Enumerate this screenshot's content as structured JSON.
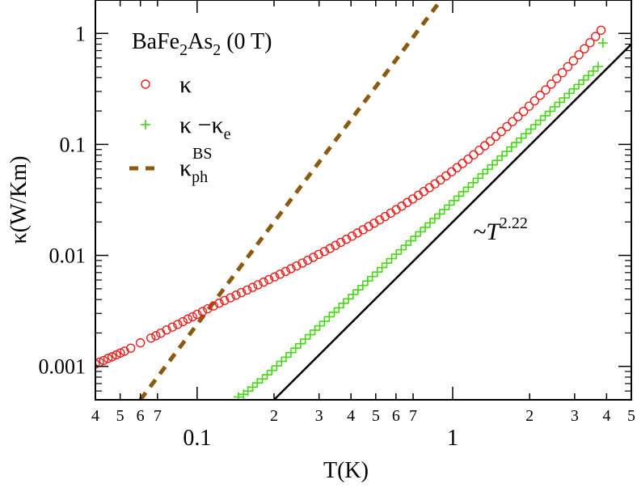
{
  "chart_data": {
    "type": "scatter",
    "title": "",
    "annotation": {
      "prefix": "~T",
      "exponent": "2.22"
    },
    "compound": {
      "part1": "BaFe",
      "sub1": "2",
      "part2": "As",
      "sub2": "2",
      "suffix": " (0 T)"
    },
    "xlabel": "T(K)",
    "ylabel": "κ(W/Km)",
    "xscale": "log",
    "yscale": "log",
    "xlim": [
      0.04,
      5
    ],
    "ylim": [
      0.0005,
      2
    ],
    "x_major_ticks": [
      {
        "value": 0.1,
        "label": "0.1"
      },
      {
        "value": 1,
        "label": "1"
      }
    ],
    "x_minor_ticks": [
      {
        "value": 0.04,
        "label": "4"
      },
      {
        "value": 0.05,
        "label": "5"
      },
      {
        "value": 0.06,
        "label": "6"
      },
      {
        "value": 0.07,
        "label": "7"
      },
      {
        "value": 0.2,
        "label": "2"
      },
      {
        "value": 0.3,
        "label": "3"
      },
      {
        "value": 0.4,
        "label": "4"
      },
      {
        "value": 0.5,
        "label": "5"
      },
      {
        "value": 0.6,
        "label": "6"
      },
      {
        "value": 0.7,
        "label": "7"
      },
      {
        "value": 2,
        "label": "2"
      },
      {
        "value": 3,
        "label": "3"
      },
      {
        "value": 4,
        "label": "4"
      },
      {
        "value": 5,
        "label": "5"
      }
    ],
    "y_major_ticks": [
      {
        "value": 0.001,
        "label": "0.001"
      },
      {
        "value": 0.01,
        "label": "0.01"
      },
      {
        "value": 0.1,
        "label": "0.1"
      },
      {
        "value": 1,
        "label": "1"
      }
    ],
    "legend_position": "top-left",
    "legend": [
      {
        "label": "κ",
        "sub": "",
        "sup": "",
        "marker": "circle",
        "color": "#e8211f"
      },
      {
        "label": "κ −κ",
        "sub": "e",
        "sup": "",
        "marker": "plus",
        "color": "#44d610"
      },
      {
        "label": "κ",
        "sub": "ph",
        "sup": "BS",
        "marker": "dashed-line",
        "color": "#8b5a0f"
      }
    ],
    "series": [
      {
        "name": "κ",
        "marker": "circle",
        "color": "#e8211f",
        "x": [
          0.04,
          0.0415,
          0.0431,
          0.0448,
          0.0465,
          0.0483,
          0.0501,
          0.052,
          0.055,
          0.06,
          0.066,
          0.069,
          0.072,
          0.076,
          0.08,
          0.084,
          0.088,
          0.092,
          0.096,
          0.1,
          0.105,
          0.11,
          0.116,
          0.122,
          0.128,
          0.135,
          0.142,
          0.149,
          0.157,
          0.165,
          0.173,
          0.182,
          0.191,
          0.201,
          0.211,
          0.222,
          0.233,
          0.245,
          0.258,
          0.271,
          0.285,
          0.299,
          0.315,
          0.331,
          0.348,
          0.365,
          0.384,
          0.404,
          0.424,
          0.446,
          0.469,
          0.493,
          0.518,
          0.544,
          0.572,
          0.601,
          0.632,
          0.664,
          0.698,
          0.734,
          0.771,
          0.811,
          0.852,
          0.896,
          0.942,
          0.99,
          1.04,
          1.093,
          1.149,
          1.208,
          1.27,
          1.335,
          1.403,
          1.475,
          1.55,
          1.63,
          1.713,
          1.801,
          1.893,
          1.99,
          2.092,
          2.199,
          2.311,
          2.43,
          2.554,
          2.685,
          2.822,
          2.967,
          3.118,
          3.278,
          3.446,
          3.622,
          3.807
        ],
        "y": [
          0.00105,
          0.00109,
          0.00113,
          0.00118,
          0.00122,
          0.00127,
          0.00132,
          0.00137,
          0.00146,
          0.00163,
          0.0018,
          0.00189,
          0.00199,
          0.00213,
          0.00226,
          0.00239,
          0.00253,
          0.00267,
          0.0028,
          0.00294,
          0.00312,
          0.0033,
          0.0035,
          0.00371,
          0.00392,
          0.00415,
          0.00438,
          0.00462,
          0.00488,
          0.00515,
          0.00543,
          0.00574,
          0.00606,
          0.0064,
          0.00677,
          0.00717,
          0.00759,
          0.00804,
          0.00853,
          0.00905,
          0.00961,
          0.01021,
          0.01086,
          0.01155,
          0.01231,
          0.01311,
          0.01398,
          0.01491,
          0.01592,
          0.01703,
          0.01822,
          0.01948,
          0.02088,
          0.0224,
          0.02403,
          0.02585,
          0.0278,
          0.02994,
          0.03227,
          0.03483,
          0.03765,
          0.04074,
          0.04413,
          0.04788,
          0.05207,
          0.05661,
          0.0617,
          0.06735,
          0.07361,
          0.0806,
          0.08847,
          0.0972,
          0.1069,
          0.1181,
          0.1304,
          0.1447,
          0.1602,
          0.1779,
          0.1981,
          0.221,
          0.247,
          0.277,
          0.31,
          0.349,
          0.393,
          0.443,
          0.501,
          0.567,
          0.642,
          0.728,
          0.826,
          0.939,
          1.069
        ]
      },
      {
        "name": "κ −κe",
        "marker": "plus",
        "color": "#44d610",
        "x": [
          0.145,
          0.152,
          0.158,
          0.165,
          0.172,
          0.18,
          0.188,
          0.196,
          0.205,
          0.214,
          0.223,
          0.233,
          0.243,
          0.254,
          0.265,
          0.277,
          0.289,
          0.302,
          0.315,
          0.329,
          0.344,
          0.359,
          0.374,
          0.391,
          0.408,
          0.426,
          0.445,
          0.465,
          0.485,
          0.507,
          0.529,
          0.552,
          0.577,
          0.602,
          0.629,
          0.657,
          0.686,
          0.716,
          0.748,
          0.781,
          0.815,
          0.851,
          0.889,
          0.928,
          0.969,
          1.012,
          1.057,
          1.103,
          1.152,
          1.203,
          1.256,
          1.312,
          1.37,
          1.43,
          1.494,
          1.56,
          1.629,
          1.7,
          1.776,
          1.854,
          1.936,
          2.022,
          2.111,
          2.205,
          2.302,
          2.404,
          2.51,
          2.621,
          2.737,
          2.858,
          2.984,
          3.116,
          3.254,
          3.398,
          3.548,
          3.705,
          3.869
        ],
        "y": [
          0.00053,
          0.00056,
          0.0006,
          0.00065,
          0.00071,
          0.00077,
          0.00084,
          0.00092,
          0.00101,
          0.00111,
          0.00121,
          0.00133,
          0.00146,
          0.0016,
          0.00176,
          0.00193,
          0.00212,
          0.00232,
          0.00255,
          0.0028,
          0.00307,
          0.00337,
          0.0037,
          0.00406,
          0.00445,
          0.00489,
          0.00536,
          0.00588,
          0.00645,
          0.00708,
          0.00777,
          0.00852,
          0.00935,
          0.01025,
          0.01125,
          0.01234,
          0.01354,
          0.01486,
          0.0163,
          0.01788,
          0.01961,
          0.02152,
          0.02361,
          0.0259,
          0.02841,
          0.03117,
          0.0342,
          0.03752,
          0.04116,
          0.04515,
          0.04953,
          0.05434,
          0.05962,
          0.0654,
          0.07175,
          0.07871,
          0.08636,
          0.09474,
          0.1039,
          0.114,
          0.1251,
          0.1372,
          0.1506,
          0.1652,
          0.1812,
          0.1988,
          0.2181,
          0.2393,
          0.2625,
          0.288,
          0.3159,
          0.3466,
          0.3802,
          0.4171,
          0.4576,
          0.502,
          0.82
        ]
      },
      {
        "name": "κphBS",
        "marker": "dashed-line",
        "color": "#8b5a0f",
        "x": [
          0.06,
          0.9
        ],
        "y": [
          0.0005,
          2.0
        ]
      },
      {
        "name": "~T^2.22",
        "marker": "solid-line",
        "color": "#000000",
        "x": [
          0.2,
          5.0
        ],
        "y": [
          0.0005,
          0.8
        ]
      }
    ]
  }
}
